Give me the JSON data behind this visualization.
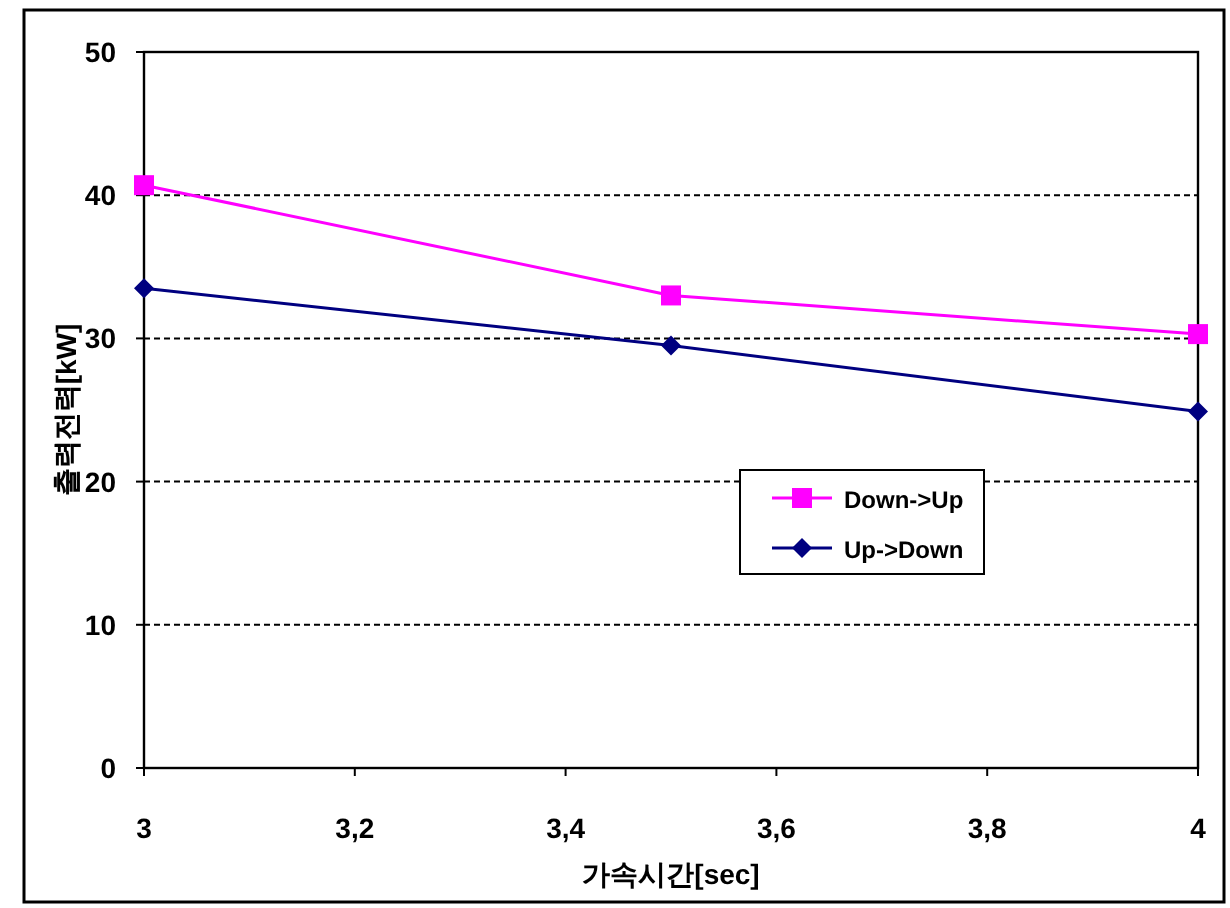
{
  "chart_data": {
    "type": "line",
    "xlabel": "가속시간[sec]",
    "ylabel": "출력전력[kW]",
    "x": [
      3,
      3.5,
      4
    ],
    "series": [
      {
        "name": "Down->Up",
        "color": "#ff00ff",
        "values": [
          40.7,
          33,
          30.3
        ],
        "marker": "square"
      },
      {
        "name": "Up->Down",
        "color": "#000080",
        "values": [
          33.5,
          29.5,
          24.9
        ],
        "marker": "diamond"
      }
    ],
    "xlim": [
      3,
      4
    ],
    "xticks": [
      3,
      {
        "value": 3.2,
        "label": "3,2"
      },
      {
        "value": 3.4,
        "label": "3,4"
      },
      {
        "value": 3.6,
        "label": "3,6"
      },
      {
        "value": 3.8,
        "label": "3,8"
      },
      4
    ],
    "ylim": [
      0,
      50
    ],
    "yticks": [
      0,
      10,
      20,
      30,
      40,
      50
    ],
    "grid": "y",
    "legend": "right",
    "line_style": "solid"
  }
}
